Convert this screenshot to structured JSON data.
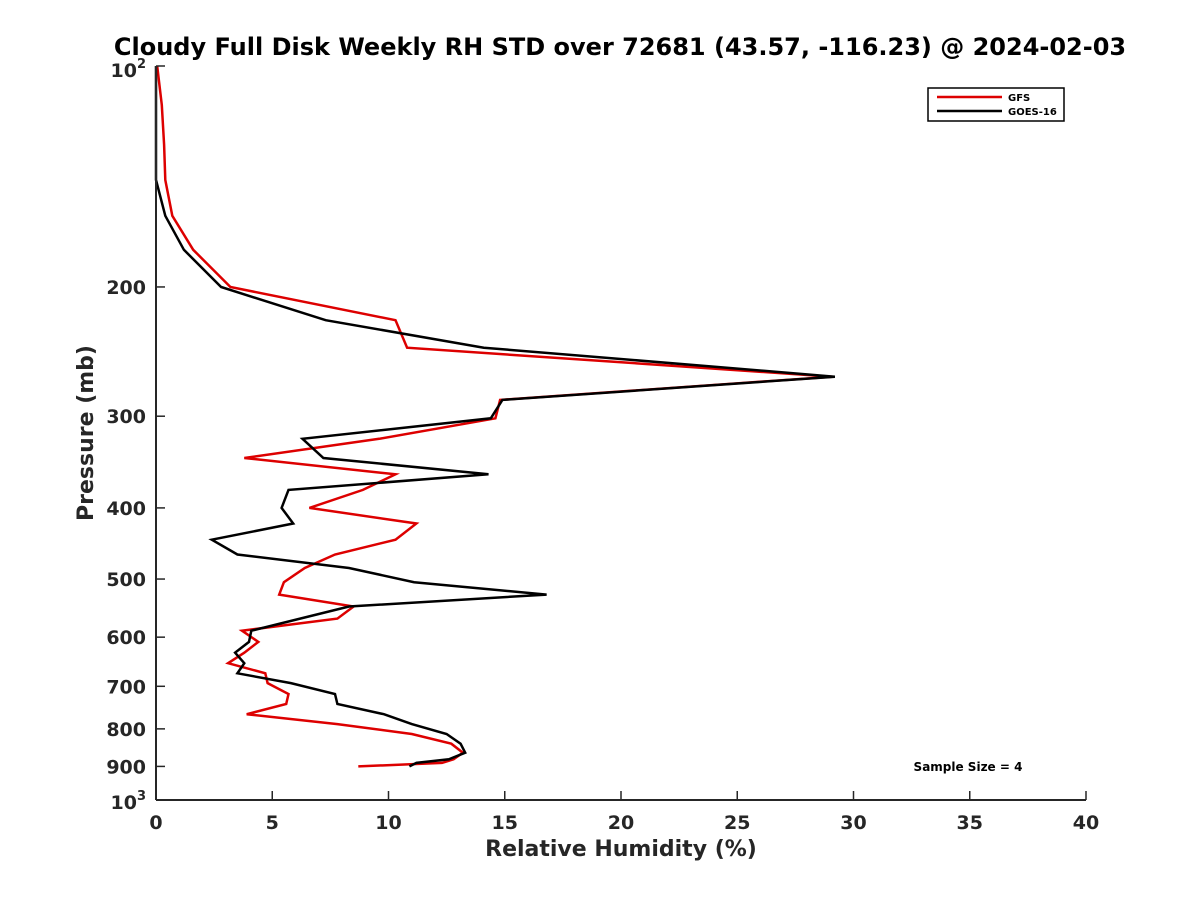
{
  "chart_data": {
    "type": "line",
    "title": "Cloudy Full Disk Weekly RH STD over 72681 (43.57, -116.23) @ 2024-02-03",
    "xlabel": "Relative Humidity (%)",
    "ylabel": "Pressure (mb)",
    "xlim": [
      0,
      40
    ],
    "ylim": [
      100,
      1000
    ],
    "y_scale": "log",
    "y_reversed": true,
    "grid": false,
    "x_ticks": [
      0,
      5,
      10,
      15,
      20,
      25,
      30,
      35,
      40
    ],
    "x_tick_labels": [
      "0",
      "5",
      "10",
      "15",
      "20",
      "25",
      "30",
      "35",
      "40"
    ],
    "y_ticks": [
      200,
      300,
      400,
      500,
      600,
      700,
      800,
      900
    ],
    "y_tick_labels": [
      "200",
      "300",
      "400",
      "500",
      "600",
      "700",
      "800",
      "900"
    ],
    "y_top_label": {
      "base": "10",
      "exp": "2"
    },
    "y_bottom_label": {
      "base": "10",
      "exp": "3"
    },
    "legend": {
      "position": "top-right",
      "entries": [
        "GFS",
        "GOES-16"
      ]
    },
    "annotation": "Sample Size = 4",
    "series": [
      {
        "name": "GFS",
        "color": "#dd0000",
        "points": [
          [
            0.05,
            100
          ],
          [
            0.25,
            113
          ],
          [
            0.35,
            128
          ],
          [
            0.4,
            143
          ],
          [
            0.7,
            160
          ],
          [
            1.6,
            178
          ],
          [
            3.2,
            200
          ],
          [
            10.3,
            222
          ],
          [
            10.8,
            242
          ],
          [
            29.1,
            265
          ],
          [
            14.8,
            285
          ],
          [
            14.6,
            302
          ],
          [
            9.6,
            322
          ],
          [
            3.8,
            342
          ],
          [
            10.3,
            360
          ],
          [
            8.9,
            378
          ],
          [
            6.6,
            400
          ],
          [
            11.2,
            420
          ],
          [
            10.3,
            442
          ],
          [
            7.7,
            463
          ],
          [
            6.4,
            483
          ],
          [
            5.5,
            505
          ],
          [
            5.3,
            525
          ],
          [
            8.5,
            545
          ],
          [
            7.8,
            566
          ],
          [
            3.7,
            588
          ],
          [
            4.4,
            609
          ],
          [
            3.8,
            630
          ],
          [
            3.1,
            651
          ],
          [
            4.7,
            672
          ],
          [
            4.8,
            693
          ],
          [
            5.7,
            717
          ],
          [
            5.6,
            740
          ],
          [
            3.9,
            764
          ],
          [
            7.8,
            788
          ],
          [
            11.0,
            813
          ],
          [
            12.7,
            838
          ],
          [
            13.2,
            862
          ],
          [
            12.8,
            880
          ],
          [
            12.3,
            890
          ],
          [
            8.7,
            900
          ]
        ]
      },
      {
        "name": "GOES-16",
        "color": "#000000",
        "points": [
          [
            0.0,
            100
          ],
          [
            0.0,
            113
          ],
          [
            0.0,
            128
          ],
          [
            0.0,
            143
          ],
          [
            0.4,
            160
          ],
          [
            1.2,
            178
          ],
          [
            2.8,
            200
          ],
          [
            7.3,
            222
          ],
          [
            14.1,
            242
          ],
          [
            29.2,
            265
          ],
          [
            14.9,
            285
          ],
          [
            14.4,
            302
          ],
          [
            6.3,
            322
          ],
          [
            7.2,
            342
          ],
          [
            14.3,
            360
          ],
          [
            5.7,
            378
          ],
          [
            5.4,
            400
          ],
          [
            5.9,
            420
          ],
          [
            2.4,
            442
          ],
          [
            3.5,
            463
          ],
          [
            8.3,
            483
          ],
          [
            11.1,
            505
          ],
          [
            16.8,
            525
          ],
          [
            8.3,
            545
          ],
          [
            6.2,
            566
          ],
          [
            4.1,
            588
          ],
          [
            4.0,
            609
          ],
          [
            3.4,
            630
          ],
          [
            3.8,
            651
          ],
          [
            3.5,
            672
          ],
          [
            5.8,
            693
          ],
          [
            7.7,
            717
          ],
          [
            7.8,
            740
          ],
          [
            9.8,
            764
          ],
          [
            11.0,
            788
          ],
          [
            12.5,
            813
          ],
          [
            13.1,
            838
          ],
          [
            13.3,
            862
          ],
          [
            12.6,
            880
          ],
          [
            11.2,
            890
          ],
          [
            10.9,
            900
          ]
        ]
      }
    ]
  }
}
